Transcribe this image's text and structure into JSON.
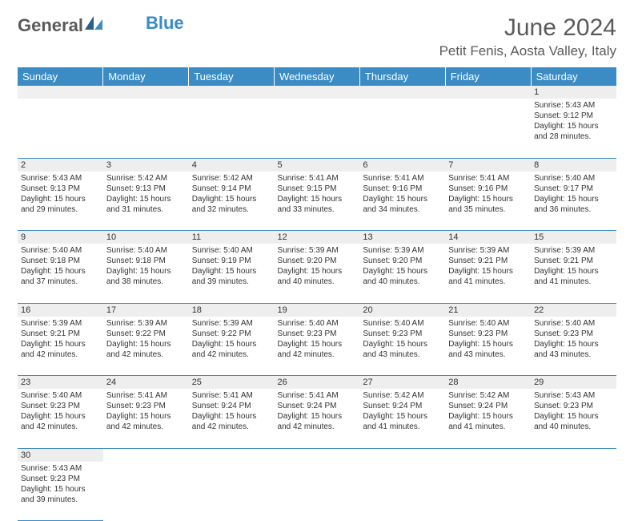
{
  "logo": {
    "text1": "General",
    "text2": "Blue",
    "color1": "#5a5a5a",
    "color2": "#3b8bc4"
  },
  "header": {
    "title": "June 2024",
    "subtitle": "Petit Fenis, Aosta Valley, Italy"
  },
  "colors": {
    "header_bg": "#3b8bc4",
    "header_text": "#ffffff",
    "daynum_bg": "#eeeeee",
    "border": "#3b8bc4",
    "text": "#333333",
    "background": "#ffffff"
  },
  "weekdays": [
    "Sunday",
    "Monday",
    "Tuesday",
    "Wednesday",
    "Thursday",
    "Friday",
    "Saturday"
  ],
  "weeks": [
    [
      null,
      null,
      null,
      null,
      null,
      null,
      {
        "n": "1",
        "r": "Sunrise: 5:43 AM",
        "s": "Sunset: 9:12 PM",
        "d1": "Daylight: 15 hours",
        "d2": "and 28 minutes."
      }
    ],
    [
      {
        "n": "2",
        "r": "Sunrise: 5:43 AM",
        "s": "Sunset: 9:13 PM",
        "d1": "Daylight: 15 hours",
        "d2": "and 29 minutes."
      },
      {
        "n": "3",
        "r": "Sunrise: 5:42 AM",
        "s": "Sunset: 9:13 PM",
        "d1": "Daylight: 15 hours",
        "d2": "and 31 minutes."
      },
      {
        "n": "4",
        "r": "Sunrise: 5:42 AM",
        "s": "Sunset: 9:14 PM",
        "d1": "Daylight: 15 hours",
        "d2": "and 32 minutes."
      },
      {
        "n": "5",
        "r": "Sunrise: 5:41 AM",
        "s": "Sunset: 9:15 PM",
        "d1": "Daylight: 15 hours",
        "d2": "and 33 minutes."
      },
      {
        "n": "6",
        "r": "Sunrise: 5:41 AM",
        "s": "Sunset: 9:16 PM",
        "d1": "Daylight: 15 hours",
        "d2": "and 34 minutes."
      },
      {
        "n": "7",
        "r": "Sunrise: 5:41 AM",
        "s": "Sunset: 9:16 PM",
        "d1": "Daylight: 15 hours",
        "d2": "and 35 minutes."
      },
      {
        "n": "8",
        "r": "Sunrise: 5:40 AM",
        "s": "Sunset: 9:17 PM",
        "d1": "Daylight: 15 hours",
        "d2": "and 36 minutes."
      }
    ],
    [
      {
        "n": "9",
        "r": "Sunrise: 5:40 AM",
        "s": "Sunset: 9:18 PM",
        "d1": "Daylight: 15 hours",
        "d2": "and 37 minutes."
      },
      {
        "n": "10",
        "r": "Sunrise: 5:40 AM",
        "s": "Sunset: 9:18 PM",
        "d1": "Daylight: 15 hours",
        "d2": "and 38 minutes."
      },
      {
        "n": "11",
        "r": "Sunrise: 5:40 AM",
        "s": "Sunset: 9:19 PM",
        "d1": "Daylight: 15 hours",
        "d2": "and 39 minutes."
      },
      {
        "n": "12",
        "r": "Sunrise: 5:39 AM",
        "s": "Sunset: 9:20 PM",
        "d1": "Daylight: 15 hours",
        "d2": "and 40 minutes."
      },
      {
        "n": "13",
        "r": "Sunrise: 5:39 AM",
        "s": "Sunset: 9:20 PM",
        "d1": "Daylight: 15 hours",
        "d2": "and 40 minutes."
      },
      {
        "n": "14",
        "r": "Sunrise: 5:39 AM",
        "s": "Sunset: 9:21 PM",
        "d1": "Daylight: 15 hours",
        "d2": "and 41 minutes."
      },
      {
        "n": "15",
        "r": "Sunrise: 5:39 AM",
        "s": "Sunset: 9:21 PM",
        "d1": "Daylight: 15 hours",
        "d2": "and 41 minutes."
      }
    ],
    [
      {
        "n": "16",
        "r": "Sunrise: 5:39 AM",
        "s": "Sunset: 9:21 PM",
        "d1": "Daylight: 15 hours",
        "d2": "and 42 minutes."
      },
      {
        "n": "17",
        "r": "Sunrise: 5:39 AM",
        "s": "Sunset: 9:22 PM",
        "d1": "Daylight: 15 hours",
        "d2": "and 42 minutes."
      },
      {
        "n": "18",
        "r": "Sunrise: 5:39 AM",
        "s": "Sunset: 9:22 PM",
        "d1": "Daylight: 15 hours",
        "d2": "and 42 minutes."
      },
      {
        "n": "19",
        "r": "Sunrise: 5:40 AM",
        "s": "Sunset: 9:23 PM",
        "d1": "Daylight: 15 hours",
        "d2": "and 42 minutes."
      },
      {
        "n": "20",
        "r": "Sunrise: 5:40 AM",
        "s": "Sunset: 9:23 PM",
        "d1": "Daylight: 15 hours",
        "d2": "and 43 minutes."
      },
      {
        "n": "21",
        "r": "Sunrise: 5:40 AM",
        "s": "Sunset: 9:23 PM",
        "d1": "Daylight: 15 hours",
        "d2": "and 43 minutes."
      },
      {
        "n": "22",
        "r": "Sunrise: 5:40 AM",
        "s": "Sunset: 9:23 PM",
        "d1": "Daylight: 15 hours",
        "d2": "and 43 minutes."
      }
    ],
    [
      {
        "n": "23",
        "r": "Sunrise: 5:40 AM",
        "s": "Sunset: 9:23 PM",
        "d1": "Daylight: 15 hours",
        "d2": "and 42 minutes."
      },
      {
        "n": "24",
        "r": "Sunrise: 5:41 AM",
        "s": "Sunset: 9:23 PM",
        "d1": "Daylight: 15 hours",
        "d2": "and 42 minutes."
      },
      {
        "n": "25",
        "r": "Sunrise: 5:41 AM",
        "s": "Sunset: 9:24 PM",
        "d1": "Daylight: 15 hours",
        "d2": "and 42 minutes."
      },
      {
        "n": "26",
        "r": "Sunrise: 5:41 AM",
        "s": "Sunset: 9:24 PM",
        "d1": "Daylight: 15 hours",
        "d2": "and 42 minutes."
      },
      {
        "n": "27",
        "r": "Sunrise: 5:42 AM",
        "s": "Sunset: 9:24 PM",
        "d1": "Daylight: 15 hours",
        "d2": "and 41 minutes."
      },
      {
        "n": "28",
        "r": "Sunrise: 5:42 AM",
        "s": "Sunset: 9:24 PM",
        "d1": "Daylight: 15 hours",
        "d2": "and 41 minutes."
      },
      {
        "n": "29",
        "r": "Sunrise: 5:43 AM",
        "s": "Sunset: 9:23 PM",
        "d1": "Daylight: 15 hours",
        "d2": "and 40 minutes."
      }
    ],
    [
      {
        "n": "30",
        "r": "Sunrise: 5:43 AM",
        "s": "Sunset: 9:23 PM",
        "d1": "Daylight: 15 hours",
        "d2": "and 39 minutes."
      },
      null,
      null,
      null,
      null,
      null,
      null
    ]
  ]
}
